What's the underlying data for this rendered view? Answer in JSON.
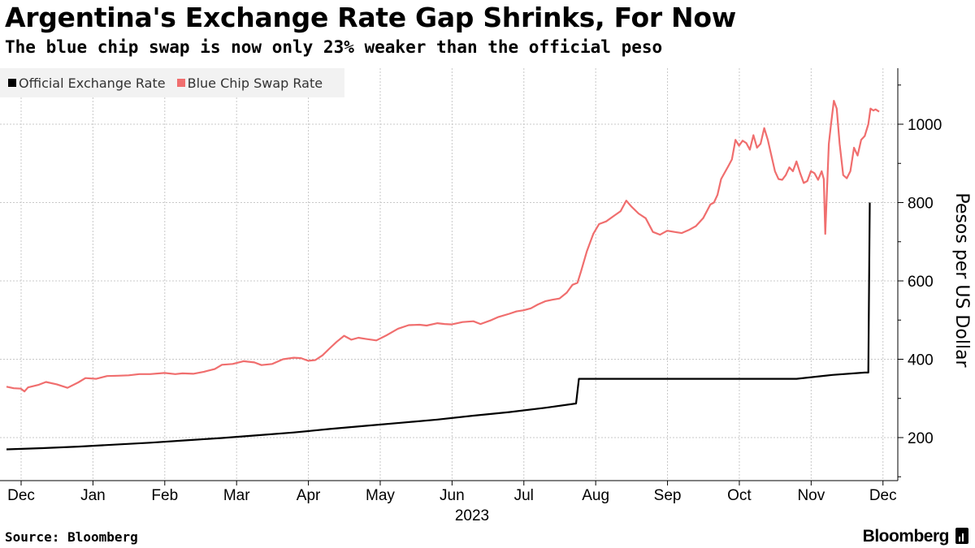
{
  "chart_data": {
    "type": "line",
    "title": "Argentina's Exchange Rate Gap Shrinks, For Now",
    "subtitle": "The blue chip swap is now only 23% weaker than the official peso",
    "ylabel": "Pesos per US Dollar",
    "xlabel": "2023",
    "ylim": [
      100,
      1150
    ],
    "yticks": [
      200,
      400,
      600,
      800,
      1000
    ],
    "y_axis_side": "right",
    "grid": true,
    "legend_position": "top-left",
    "x_domain": [
      0,
      12.15
    ],
    "xticks": [
      {
        "label": "Dec",
        "x": 0
      },
      {
        "label": "Jan",
        "x": 1
      },
      {
        "label": "Feb",
        "x": 2
      },
      {
        "label": "Mar",
        "x": 3
      },
      {
        "label": "Apr",
        "x": 4
      },
      {
        "label": "May",
        "x": 5
      },
      {
        "label": "Jun",
        "x": 6
      },
      {
        "label": "Jul",
        "x": 7
      },
      {
        "label": "Aug",
        "x": 8
      },
      {
        "label": "Sep",
        "x": 9
      },
      {
        "label": "Oct",
        "x": 10
      },
      {
        "label": "Nov",
        "x": 11
      },
      {
        "label": "Dec",
        "x": 12
      }
    ],
    "series": [
      {
        "name": "Official Exchange Rate",
        "color": "#000000",
        "points": [
          [
            0,
            170
          ],
          [
            0.5,
            173
          ],
          [
            1,
            177
          ],
          [
            1.5,
            182
          ],
          [
            2,
            187
          ],
          [
            2.5,
            193
          ],
          [
            3,
            199
          ],
          [
            3.5,
            206
          ],
          [
            4,
            213
          ],
          [
            4.5,
            222
          ],
          [
            5,
            230
          ],
          [
            5.5,
            238
          ],
          [
            6,
            246
          ],
          [
            6.5,
            256
          ],
          [
            7,
            265
          ],
          [
            7.5,
            276
          ],
          [
            7.93,
            287
          ],
          [
            7.97,
            350
          ],
          [
            9,
            350
          ],
          [
            10,
            350
          ],
          [
            11,
            350
          ],
          [
            11.5,
            360
          ],
          [
            11.95,
            366
          ],
          [
            12,
            366
          ],
          [
            12.02,
            800
          ]
        ]
      },
      {
        "name": "Blue Chip Swap Rate",
        "color": "#f06e6e",
        "points": [
          [
            0,
            330
          ],
          [
            0.1,
            326
          ],
          [
            0.2,
            325
          ],
          [
            0.25,
            318
          ],
          [
            0.3,
            328
          ],
          [
            0.45,
            335
          ],
          [
            0.55,
            342
          ],
          [
            0.7,
            336
          ],
          [
            0.85,
            327
          ],
          [
            1.0,
            341
          ],
          [
            1.1,
            352
          ],
          [
            1.25,
            350
          ],
          [
            1.4,
            357
          ],
          [
            1.55,
            358
          ],
          [
            1.7,
            359
          ],
          [
            1.85,
            362
          ],
          [
            2.0,
            362
          ],
          [
            2.2,
            365
          ],
          [
            2.35,
            362
          ],
          [
            2.45,
            364
          ],
          [
            2.6,
            363
          ],
          [
            2.75,
            368
          ],
          [
            2.9,
            375
          ],
          [
            3.0,
            386
          ],
          [
            3.15,
            388
          ],
          [
            3.3,
            395
          ],
          [
            3.45,
            392
          ],
          [
            3.55,
            385
          ],
          [
            3.7,
            388
          ],
          [
            3.85,
            400
          ],
          [
            4.0,
            404
          ],
          [
            4.1,
            403
          ],
          [
            4.2,
            396
          ],
          [
            4.3,
            398
          ],
          [
            4.4,
            410
          ],
          [
            4.5,
            428
          ],
          [
            4.6,
            445
          ],
          [
            4.7,
            460
          ],
          [
            4.8,
            450
          ],
          [
            4.9,
            455
          ],
          [
            5.0,
            452
          ],
          [
            5.15,
            448
          ],
          [
            5.3,
            462
          ],
          [
            5.45,
            478
          ],
          [
            5.6,
            487
          ],
          [
            5.75,
            488
          ],
          [
            5.85,
            486
          ],
          [
            6.0,
            492
          ],
          [
            6.1,
            490
          ],
          [
            6.2,
            489
          ],
          [
            6.35,
            495
          ],
          [
            6.5,
            497
          ],
          [
            6.6,
            490
          ],
          [
            6.75,
            500
          ],
          [
            6.85,
            508
          ],
          [
            7.0,
            516
          ],
          [
            7.1,
            522
          ],
          [
            7.2,
            525
          ],
          [
            7.3,
            530
          ],
          [
            7.4,
            540
          ],
          [
            7.5,
            548
          ],
          [
            7.6,
            552
          ],
          [
            7.7,
            555
          ],
          [
            7.8,
            570
          ],
          [
            7.88,
            590
          ],
          [
            7.95,
            595
          ],
          [
            8.0,
            625
          ],
          [
            8.08,
            675
          ],
          [
            8.17,
            720
          ],
          [
            8.25,
            745
          ],
          [
            8.35,
            752
          ],
          [
            8.45,
            765
          ],
          [
            8.55,
            778
          ],
          [
            8.63,
            805
          ],
          [
            8.7,
            790
          ],
          [
            8.8,
            772
          ],
          [
            8.9,
            760
          ],
          [
            9.0,
            725
          ],
          [
            9.1,
            718
          ],
          [
            9.2,
            728
          ],
          [
            9.3,
            725
          ],
          [
            9.4,
            722
          ],
          [
            9.5,
            730
          ],
          [
            9.6,
            740
          ],
          [
            9.7,
            760
          ],
          [
            9.8,
            795
          ],
          [
            9.85,
            800
          ],
          [
            9.9,
            820
          ],
          [
            9.95,
            860
          ],
          [
            10.05,
            893
          ],
          [
            10.1,
            910
          ],
          [
            10.15,
            960
          ],
          [
            10.2,
            945
          ],
          [
            10.25,
            958
          ],
          [
            10.3,
            952
          ],
          [
            10.35,
            935
          ],
          [
            10.4,
            972
          ],
          [
            10.45,
            940
          ],
          [
            10.5,
            950
          ],
          [
            10.55,
            990
          ],
          [
            10.6,
            960
          ],
          [
            10.65,
            920
          ],
          [
            10.7,
            880
          ],
          [
            10.75,
            860
          ],
          [
            10.8,
            858
          ],
          [
            10.85,
            870
          ],
          [
            10.9,
            890
          ],
          [
            10.95,
            880
          ],
          [
            11.0,
            905
          ],
          [
            11.05,
            875
          ],
          [
            11.1,
            850
          ],
          [
            11.15,
            855
          ],
          [
            11.2,
            880
          ],
          [
            11.25,
            875
          ],
          [
            11.3,
            858
          ],
          [
            11.35,
            880
          ],
          [
            11.38,
            860
          ],
          [
            11.4,
            720
          ],
          [
            11.45,
            950
          ],
          [
            11.48,
            1000
          ],
          [
            11.52,
            1060
          ],
          [
            11.56,
            1040
          ],
          [
            11.6,
            950
          ],
          [
            11.65,
            870
          ],
          [
            11.7,
            862
          ],
          [
            11.75,
            880
          ],
          [
            11.8,
            940
          ],
          [
            11.85,
            920
          ],
          [
            11.9,
            960
          ],
          [
            11.95,
            970
          ],
          [
            12.0,
            1000
          ],
          [
            12.03,
            1040
          ],
          [
            12.07,
            1035
          ],
          [
            12.1,
            1038
          ],
          [
            12.15,
            1032
          ]
        ]
      }
    ]
  },
  "source": "Source: Bloomberg",
  "brand": "Bloomberg"
}
